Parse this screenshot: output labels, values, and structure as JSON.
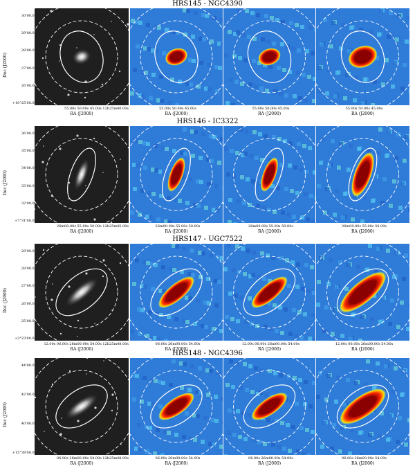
{
  "rows": [
    {
      "title": "HRS145 - NGC4390",
      "ylabel": "Dec (J2000)",
      "yticks": [
        "30'00.0\"",
        "29'00.0\"",
        "28'00.0\"",
        "27'00.0\"",
        "26'00.0\"",
        "+10°25'00.0\""
      ],
      "xticks": [
        "55.00s 50.00s 45.00s 12h25m40.00s",
        "55.00s 50.00s 45.00s",
        "55.00s 50.00s 45.00s",
        "55.00s 50.00s 45.00s"
      ],
      "xlabels": [
        "RA (J2000)",
        "RA (J2000)",
        "RA (J2000)",
        "RA (J2000)"
      ]
    },
    {
      "title": "HRS146 - IC3322",
      "ylabel": "Dec (J2000)",
      "yticks": [
        "36'00.0\"",
        "35'00.0\"",
        "34'00.0\"",
        "33'00.0\"",
        "32'00.0\"",
        "+7°31'00.0\""
      ],
      "xticks": [
        "26m00.00s 55.00s 50.00s 12h25m45.00s",
        "26m00.00s 55.00s 50.00s",
        "26m00.00s 55.00s 50.00s",
        "26m00.00s 55.00s 50.00s"
      ],
      "xlabels": [
        "RA (J2000)",
        "RA (J2000)",
        "RA (J2000)",
        "RA (J2000)"
      ]
    },
    {
      "title": "HRS147 - UGC7522",
      "ylabel": "Dec (J2000)",
      "yticks": [
        "29'00.0\"",
        "28'00.0\"",
        "27'00.0\"",
        "26'00.0\"",
        "25'00.0\"",
        "+3°23'00.0\""
      ],
      "xticks": [
        "12.00s 06.00s 26m00.00s 54.00s 12h25m48.00s",
        "06.00s 26m00.00s 54.00s",
        "12.00s 06.00s 26m00.00s 54.00s",
        "12.00s 06.00s 26m00.00s 54.00s"
      ],
      "xlabels": [
        "RA (J2000)",
        "RA (J2000)",
        "RA (J2000)",
        "RA (J2000)"
      ]
    },
    {
      "title": "HRS148 - NGC4396",
      "ylabel": "Dec (J2000)",
      "yticks": [
        "44'00.0\"",
        "42'00.0\"",
        "40'00.0\"",
        "+15°38'00.0\""
      ],
      "xticks": [
        "06.00s 26m00.00s 54.00s 12h25m48.00s",
        "06.00s 26m00.00s 54.00s",
        "06.00s 26m00.00s 54.00s",
        "06.00s 26m00.00s 54.00s"
      ],
      "xlabels": [
        "RA (J2000)",
        "RA (J2000)",
        "RA (J2000)",
        "RA (J2000)"
      ]
    }
  ],
  "colors": {
    "bg_map": "#2f7bd8",
    "core": "#8b0000",
    "mid": "#ff2a00",
    "halo": "#ffe000",
    "ellipse": "#ffffff"
  }
}
